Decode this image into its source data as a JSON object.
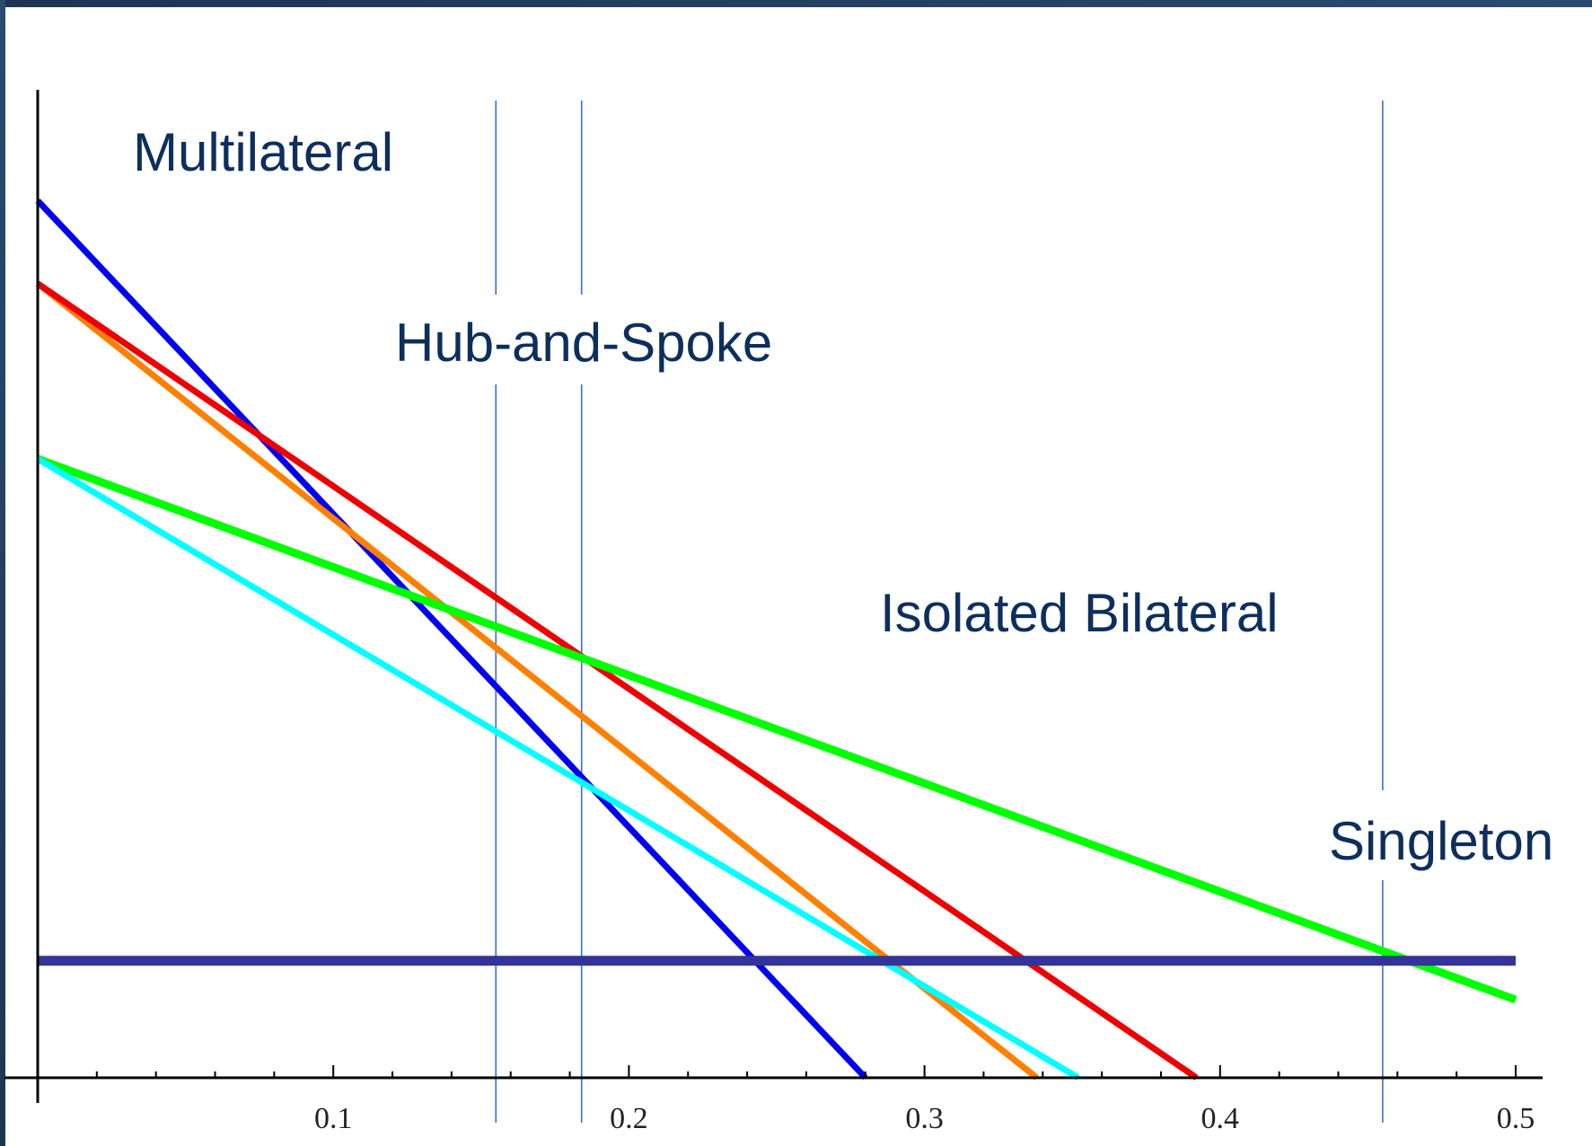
{
  "chart_data": {
    "type": "line",
    "xlim": [
      0,
      0.5
    ],
    "ylim": [
      0,
      1
    ],
    "x_ticks": [
      0.1,
      0.2,
      0.3,
      0.4,
      0.5
    ],
    "x_tick_labels": [
      "0.1",
      "0.2",
      "0.3",
      "0.4",
      "0.5"
    ],
    "minor_tick_step": 0.02,
    "grid": false,
    "colors": {
      "axes": "#000000",
      "dividers": "#3a6fd0",
      "label_text": "#0e2f5c",
      "frame": "#1e3552"
    },
    "region_dividers_x": [
      0.155,
      0.184,
      0.455
    ],
    "region_labels": [
      {
        "text": "Multilateral"
      },
      {
        "text": "Hub-and-Spoke"
      },
      {
        "text": "Isolated Bilateral"
      },
      {
        "text": "Singleton"
      }
    ],
    "series": [
      {
        "color": "#0000ee",
        "width": 7,
        "x": [
          0,
          0.28
        ],
        "y": [
          0.9,
          0
        ]
      },
      {
        "color": "#ff7f00",
        "width": 7,
        "x": [
          0,
          0.338
        ],
        "y": [
          0.815,
          0
        ]
      },
      {
        "color": "#ee0000",
        "width": 7,
        "x": [
          0,
          0.392
        ],
        "y": [
          0.815,
          0
        ]
      },
      {
        "color": "#00ff00",
        "width": 9,
        "x": [
          0,
          0.5
        ],
        "y": [
          0.635,
          0.08
        ]
      },
      {
        "color": "#00ffff",
        "width": 7,
        "x": [
          0,
          0.352
        ],
        "y": [
          0.635,
          0
        ]
      },
      {
        "color": "#333399",
        "width": 11,
        "x": [
          0,
          0.5
        ],
        "y": [
          0.12,
          0.12
        ]
      }
    ]
  }
}
